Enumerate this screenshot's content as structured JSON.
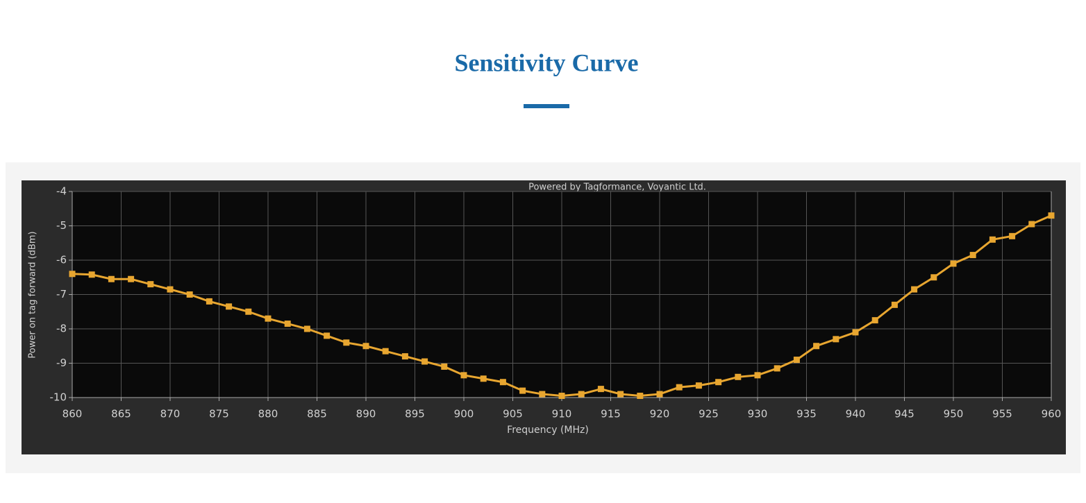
{
  "page": {
    "title": "Sensitivity Curve"
  },
  "chart_data": {
    "type": "line",
    "watermark": "Powered by Tagformance, Voyantic Ltd.",
    "x_label": "Frequency (MHz)",
    "y_label": "Power on tag forward (dBm)",
    "x": [
      860,
      862,
      864,
      866,
      868,
      870,
      872,
      874,
      876,
      878,
      880,
      882,
      884,
      886,
      888,
      890,
      892,
      894,
      896,
      898,
      900,
      902,
      904,
      906,
      908,
      910,
      912,
      914,
      916,
      918,
      920,
      922,
      924,
      926,
      928,
      930,
      932,
      934,
      936,
      938,
      940,
      942,
      944,
      946,
      948,
      950,
      952,
      954,
      956,
      958,
      960
    ],
    "series": [
      {
        "color": "#e8a630",
        "values": [
          -6.4,
          -6.42,
          -6.55,
          -6.55,
          -6.7,
          -6.85,
          -7.0,
          -7.2,
          -7.35,
          -7.5,
          -7.7,
          -7.85,
          -8.0,
          -8.2,
          -8.4,
          -8.5,
          -8.65,
          -8.8,
          -8.95,
          -9.1,
          -9.35,
          -9.45,
          -9.55,
          -9.8,
          -9.9,
          -9.95,
          -9.9,
          -9.75,
          -9.9,
          -9.95,
          -9.9,
          -9.7,
          -9.65,
          -9.55,
          -9.4,
          -9.35,
          -9.15,
          -8.9,
          -8.5,
          -8.3,
          -8.1,
          -7.75,
          -7.3,
          -6.85,
          -6.5,
          -6.1,
          -5.85,
          -5.4,
          -5.3,
          -4.95,
          -4.7
        ]
      }
    ],
    "xlim": [
      860,
      960
    ],
    "xticks": [
      860,
      865,
      870,
      875,
      880,
      885,
      890,
      895,
      900,
      905,
      910,
      915,
      920,
      925,
      930,
      935,
      940,
      945,
      950,
      955,
      960
    ],
    "ylim": [
      -10,
      -4
    ],
    "yticks": [
      -4,
      -5,
      -6,
      -7,
      -8,
      -9,
      -10
    ],
    "grid": true
  }
}
